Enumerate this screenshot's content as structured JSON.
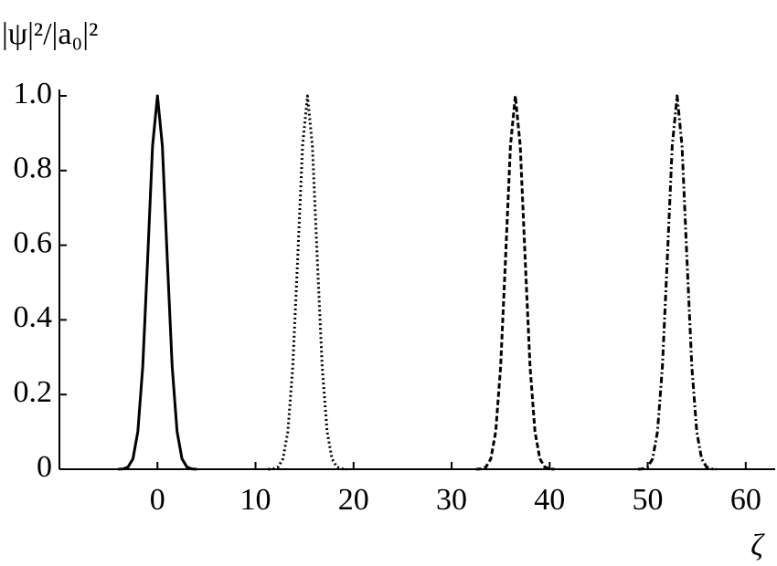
{
  "chart_data": {
    "type": "line",
    "y_label": "|ψ|²/|a₀|²",
    "x_label": "ζ",
    "xlim": [
      -10,
      63
    ],
    "xticks": [
      0,
      10,
      20,
      30,
      40,
      50,
      60
    ],
    "ylim": [
      0,
      1
    ],
    "yticks": [
      0,
      0.2,
      0.4,
      0.6,
      0.8,
      {
        "value": 1,
        "label": "1.0"
      }
    ],
    "series": [
      {
        "color": "#000000",
        "style": "solid",
        "x": [
          -4,
          -3.5,
          -3,
          -2.5,
          -2,
          -1.5,
          -1,
          -0.5,
          0,
          0.5,
          1,
          1.5,
          2,
          2.5,
          3,
          3.5,
          4
        ],
        "values": [
          0,
          0.001,
          0.006,
          0.028,
          0.101,
          0.275,
          0.564,
          0.866,
          1,
          0.866,
          0.564,
          0.275,
          0.101,
          0.028,
          0.006,
          0.001,
          0
        ]
      },
      {
        "color": "#000000",
        "style": "dotted",
        "x": [
          11.3,
          11.8,
          12.3,
          12.8,
          13.3,
          13.8,
          14.3,
          14.8,
          15.3,
          15.8,
          16.3,
          16.8,
          17.3,
          17.8,
          18.3,
          18.8,
          19.3
        ],
        "values": [
          0,
          0.001,
          0.006,
          0.028,
          0.101,
          0.275,
          0.564,
          0.866,
          1,
          0.866,
          0.564,
          0.275,
          0.101,
          0.028,
          0.006,
          0.001,
          0
        ]
      },
      {
        "color": "#000000",
        "style": "dashed",
        "x": [
          32.5,
          33,
          33.5,
          34,
          34.5,
          35,
          35.5,
          36,
          36.5,
          37,
          37.5,
          38,
          38.5,
          39,
          39.5,
          40,
          40.5
        ],
        "values": [
          0,
          0.001,
          0.006,
          0.028,
          0.101,
          0.275,
          0.564,
          0.866,
          1,
          0.866,
          0.564,
          0.275,
          0.101,
          0.028,
          0.006,
          0.001,
          0
        ]
      },
      {
        "color": "#000000",
        "style": "dashdot",
        "x": [
          49,
          49.5,
          50,
          50.5,
          51,
          51.5,
          52,
          52.5,
          53,
          53.5,
          54,
          54.5,
          55,
          55.5,
          56,
          56.5,
          57
        ],
        "values": [
          0,
          0.001,
          0.006,
          0.028,
          0.101,
          0.275,
          0.564,
          0.866,
          1,
          0.866,
          0.564,
          0.275,
          0.101,
          0.028,
          0.006,
          0.001,
          0
        ]
      }
    ]
  }
}
